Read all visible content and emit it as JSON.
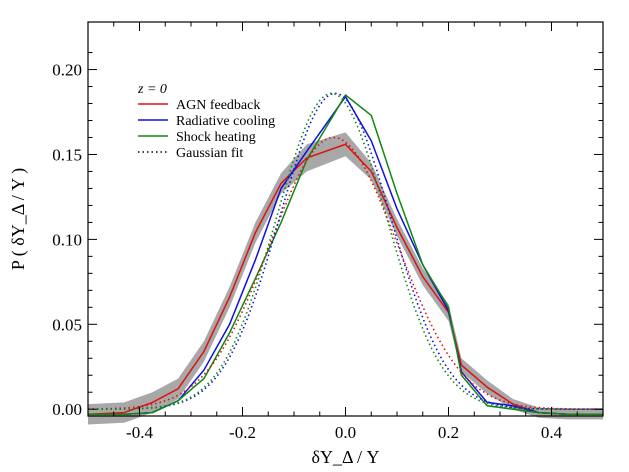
{
  "chart_data": {
    "type": "line",
    "title": "",
    "xlabel": "δY_Δ / Y",
    "ylabel": "P ( δY_Δ / Y )",
    "xlim": [
      -0.5,
      0.5
    ],
    "ylim": [
      -0.004,
      0.228
    ],
    "xticks": [
      -0.4,
      -0.2,
      0.0,
      0.2,
      0.4
    ],
    "xtick_labels": [
      "-0.4",
      "-0.2",
      "0.0",
      "0.2",
      "0.4"
    ],
    "yticks": [
      0.0,
      0.05,
      0.1,
      0.15,
      0.2
    ],
    "ytick_labels": [
      "0.00",
      "0.05",
      "0.10",
      "0.15",
      "0.20"
    ],
    "grid": false,
    "legend": {
      "placement": "top-left",
      "title": "z = 0",
      "entries": [
        "AGN feedback",
        "Radiative cooling",
        "Shock heating",
        "Gaussian fit"
      ]
    },
    "series": [
      {
        "name": "AGN feedback",
        "color": "#e01010",
        "style": "solid",
        "x": [
          -0.5,
          -0.43,
          -0.375,
          -0.325,
          -0.275,
          -0.225,
          -0.175,
          -0.125,
          -0.075,
          0.0,
          0.05,
          0.1,
          0.15,
          0.2,
          0.225,
          0.275,
          0.325,
          0.375,
          0.43,
          0.5
        ],
        "y": [
          -0.003,
          -0.002,
          0.004,
          0.012,
          0.034,
          0.066,
          0.104,
          0.133,
          0.148,
          0.156,
          0.14,
          0.107,
          0.078,
          0.057,
          0.026,
          0.013,
          0.003,
          -0.002,
          -0.003,
          -0.003
        ],
        "band": [
          0.006,
          0.006,
          0.006,
          0.006,
          0.006,
          0.006,
          0.006,
          0.006,
          0.008,
          0.007,
          0.005,
          0.005,
          0.005,
          0.005,
          0.004,
          0.004,
          0.003,
          0.003,
          0.003,
          0.003
        ]
      },
      {
        "name": "Radiative cooling",
        "color": "#1010e0",
        "style": "solid",
        "x": [
          -0.5,
          -0.43,
          -0.375,
          -0.325,
          -0.275,
          -0.225,
          -0.175,
          -0.125,
          -0.075,
          0.0,
          0.05,
          0.1,
          0.15,
          0.2,
          0.225,
          0.275,
          0.325,
          0.375,
          0.43,
          0.5
        ],
        "y": [
          -0.003,
          -0.003,
          -0.002,
          0.005,
          0.023,
          0.05,
          0.088,
          0.13,
          0.152,
          0.184,
          0.158,
          0.118,
          0.085,
          0.058,
          0.022,
          0.004,
          0.002,
          -0.002,
          -0.003,
          -0.003
        ]
      },
      {
        "name": "Shock heating",
        "color": "#108810",
        "style": "solid",
        "x": [
          -0.5,
          -0.43,
          -0.375,
          -0.325,
          -0.275,
          -0.225,
          -0.175,
          -0.125,
          -0.075,
          0.0,
          0.05,
          0.1,
          0.15,
          0.2,
          0.225,
          0.275,
          0.325,
          0.375,
          0.43,
          0.5
        ],
        "y": [
          -0.003,
          -0.003,
          -0.002,
          0.005,
          0.018,
          0.045,
          0.077,
          0.11,
          0.147,
          0.185,
          0.173,
          0.127,
          0.085,
          0.06,
          0.02,
          0.002,
          0.0,
          -0.002,
          -0.003,
          -0.003
        ]
      },
      {
        "name": "Gaussian fit (AGN feedback)",
        "color": "#e01010",
        "style": "dotted",
        "gaussian": {
          "amplitude": 0.16,
          "mean": -0.023,
          "sigma": 0.124
        }
      },
      {
        "name": "Gaussian fit (Radiative cooling)",
        "color": "#1010e0",
        "style": "dotted",
        "gaussian": {
          "amplitude": 0.186,
          "mean": -0.02,
          "sigma": 0.108
        }
      },
      {
        "name": "Gaussian fit (Shock heating)",
        "color": "#108810",
        "style": "dotted",
        "gaussian": {
          "amplitude": 0.186,
          "mean": -0.027,
          "sigma": 0.107
        }
      }
    ]
  }
}
